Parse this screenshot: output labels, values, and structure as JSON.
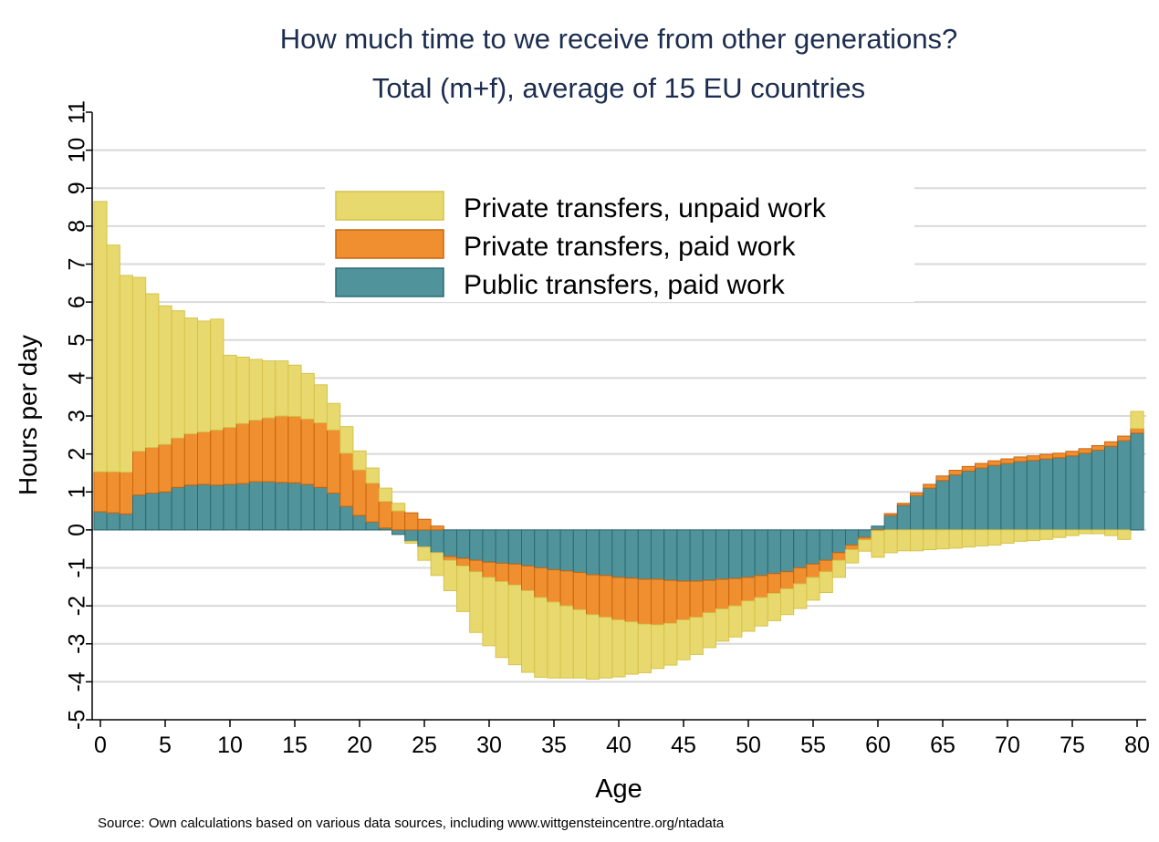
{
  "chart_data": {
    "type": "bar",
    "stacking": "diverging",
    "title": "How much time to we receive from other generations?",
    "subtitle": "Total (m+f), average of 15 EU countries",
    "xlabel": "Age",
    "ylabel": "Hours per day",
    "xlim": [
      0,
      80
    ],
    "ylim": [
      -5,
      11
    ],
    "xticks": [
      "0",
      "5",
      "10",
      "15",
      "20",
      "25",
      "30",
      "35",
      "40",
      "45",
      "50",
      "55",
      "60",
      "65",
      "70",
      "75",
      "80"
    ],
    "yticks": [
      "-5",
      "-4",
      "-3",
      "-2",
      "-1",
      "0",
      "1",
      "2",
      "3",
      "4",
      "5",
      "6",
      "7",
      "8",
      "9",
      "10",
      "11"
    ],
    "grid": true,
    "legend_position": "top-center",
    "source": "Source: Own calculations based on various data sources, including www.wittgensteincentre.org/ntadata",
    "colors": {
      "unpaid": "#e8d96e",
      "unpaid_edge": "#d6c24a",
      "private_paid": "#ef8f2f",
      "private_paid_edge": "#c9650f",
      "public": "#51939b",
      "public_edge": "#2c6a72",
      "grid": "#d9d9d9",
      "title": "#1c2d4f"
    },
    "ages": [
      0,
      1,
      2,
      3,
      4,
      5,
      6,
      7,
      8,
      9,
      10,
      11,
      12,
      13,
      14,
      15,
      16,
      17,
      18,
      19,
      20,
      21,
      22,
      23,
      24,
      25,
      26,
      27,
      28,
      29,
      30,
      31,
      32,
      33,
      34,
      35,
      36,
      37,
      38,
      39,
      40,
      41,
      42,
      43,
      44,
      45,
      46,
      47,
      48,
      49,
      50,
      51,
      52,
      53,
      54,
      55,
      56,
      57,
      58,
      59,
      60,
      61,
      62,
      63,
      64,
      65,
      66,
      67,
      68,
      69,
      70,
      71,
      72,
      73,
      74,
      75,
      76,
      77,
      78,
      79,
      80
    ],
    "series": [
      {
        "key": "public",
        "name": "Public transfers, paid work",
        "values": [
          0.48,
          0.45,
          0.42,
          0.92,
          0.97,
          1.0,
          1.12,
          1.18,
          1.2,
          1.18,
          1.2,
          1.22,
          1.27,
          1.27,
          1.25,
          1.24,
          1.2,
          1.12,
          0.97,
          0.62,
          0.38,
          0.21,
          0.05,
          -0.12,
          -0.3,
          -0.45,
          -0.6,
          -0.7,
          -0.75,
          -0.8,
          -0.85,
          -0.88,
          -0.9,
          -0.95,
          -1.0,
          -1.05,
          -1.08,
          -1.12,
          -1.18,
          -1.2,
          -1.25,
          -1.27,
          -1.3,
          -1.3,
          -1.33,
          -1.35,
          -1.35,
          -1.33,
          -1.3,
          -1.28,
          -1.25,
          -1.2,
          -1.15,
          -1.1,
          -1.0,
          -0.9,
          -0.8,
          -0.6,
          -0.4,
          -0.2,
          0.1,
          0.38,
          0.65,
          0.9,
          1.1,
          1.3,
          1.45,
          1.55,
          1.63,
          1.7,
          1.75,
          1.8,
          1.83,
          1.87,
          1.9,
          1.95,
          2.02,
          2.1,
          2.2,
          2.35,
          2.55
        ]
      },
      {
        "key": "private_paid",
        "name": "Private transfers, paid work",
        "values": [
          1.05,
          1.08,
          1.1,
          1.15,
          1.2,
          1.25,
          1.3,
          1.35,
          1.38,
          1.45,
          1.5,
          1.58,
          1.62,
          1.68,
          1.75,
          1.75,
          1.72,
          1.7,
          1.66,
          1.4,
          1.2,
          1.02,
          0.7,
          0.5,
          0.45,
          0.28,
          0.1,
          -0.1,
          -0.2,
          -0.3,
          -0.4,
          -0.48,
          -0.55,
          -0.65,
          -0.78,
          -0.85,
          -0.92,
          -0.98,
          -1.05,
          -1.1,
          -1.12,
          -1.15,
          -1.18,
          -1.2,
          -1.13,
          -1.02,
          -0.95,
          -0.85,
          -0.78,
          -0.72,
          -0.62,
          -0.58,
          -0.52,
          -0.45,
          -0.42,
          -0.35,
          -0.3,
          -0.2,
          -0.12,
          -0.06,
          -0.02,
          0.05,
          0.05,
          0.07,
          0.1,
          0.12,
          0.12,
          0.12,
          0.12,
          0.12,
          0.12,
          0.12,
          0.12,
          0.12,
          0.12,
          0.12,
          0.12,
          0.12,
          0.12,
          0.12,
          0.12
        ]
      },
      {
        "key": "unpaid",
        "name": "Private transfers, unpaid work",
        "values": [
          7.12,
          5.97,
          5.18,
          4.58,
          4.05,
          3.65,
          3.35,
          3.05,
          2.92,
          2.92,
          1.9,
          1.75,
          1.6,
          1.5,
          1.45,
          1.35,
          1.2,
          1.0,
          0.7,
          0.7,
          0.5,
          0.4,
          0.35,
          0.2,
          -0.05,
          -0.35,
          -0.6,
          -0.8,
          -1.2,
          -1.6,
          -1.8,
          -2.0,
          -2.1,
          -2.15,
          -2.1,
          -2.0,
          -1.9,
          -1.8,
          -1.7,
          -1.6,
          -1.5,
          -1.38,
          -1.28,
          -1.15,
          -1.1,
          -1.05,
          -0.98,
          -0.92,
          -0.85,
          -0.82,
          -0.8,
          -0.75,
          -0.72,
          -0.68,
          -0.65,
          -0.6,
          -0.55,
          -0.45,
          -0.35,
          -0.3,
          -0.7,
          -0.6,
          -0.55,
          -0.55,
          -0.52,
          -0.5,
          -0.48,
          -0.45,
          -0.42,
          -0.4,
          -0.35,
          -0.3,
          -0.28,
          -0.25,
          -0.2,
          -0.15,
          -0.1,
          -0.1,
          -0.15,
          -0.25,
          0.45
        ]
      }
    ]
  }
}
